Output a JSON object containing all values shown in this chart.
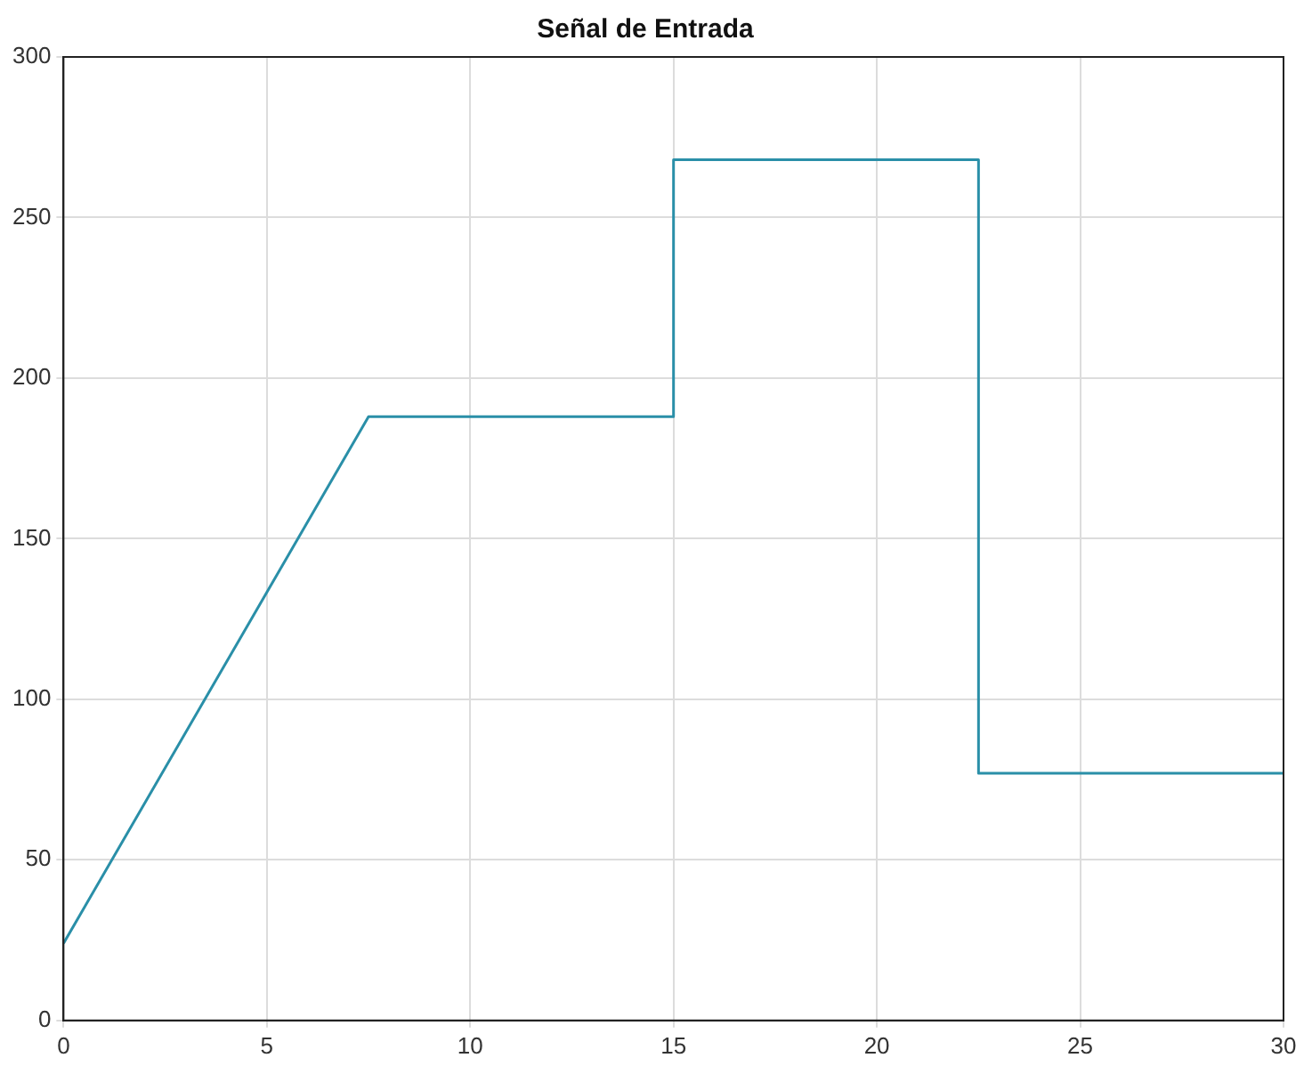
{
  "chart_data": {
    "type": "line",
    "title": "Señal de Entrada",
    "x": [
      0,
      7.5,
      15,
      15,
      22.5,
      22.5,
      30
    ],
    "series": [
      {
        "color": "#2a8fa8",
        "values": [
          24,
          188,
          188,
          268,
          268,
          77,
          77
        ]
      }
    ],
    "xlim": [
      0,
      30
    ],
    "xticks": [
      0,
      5,
      10,
      15,
      20,
      25,
      30
    ],
    "ylim": [
      0,
      300
    ],
    "yticks": [
      0,
      50,
      100,
      150,
      200,
      250,
      300
    ],
    "grid": true,
    "legend": false,
    "marker": "none",
    "line_style": "solid"
  }
}
